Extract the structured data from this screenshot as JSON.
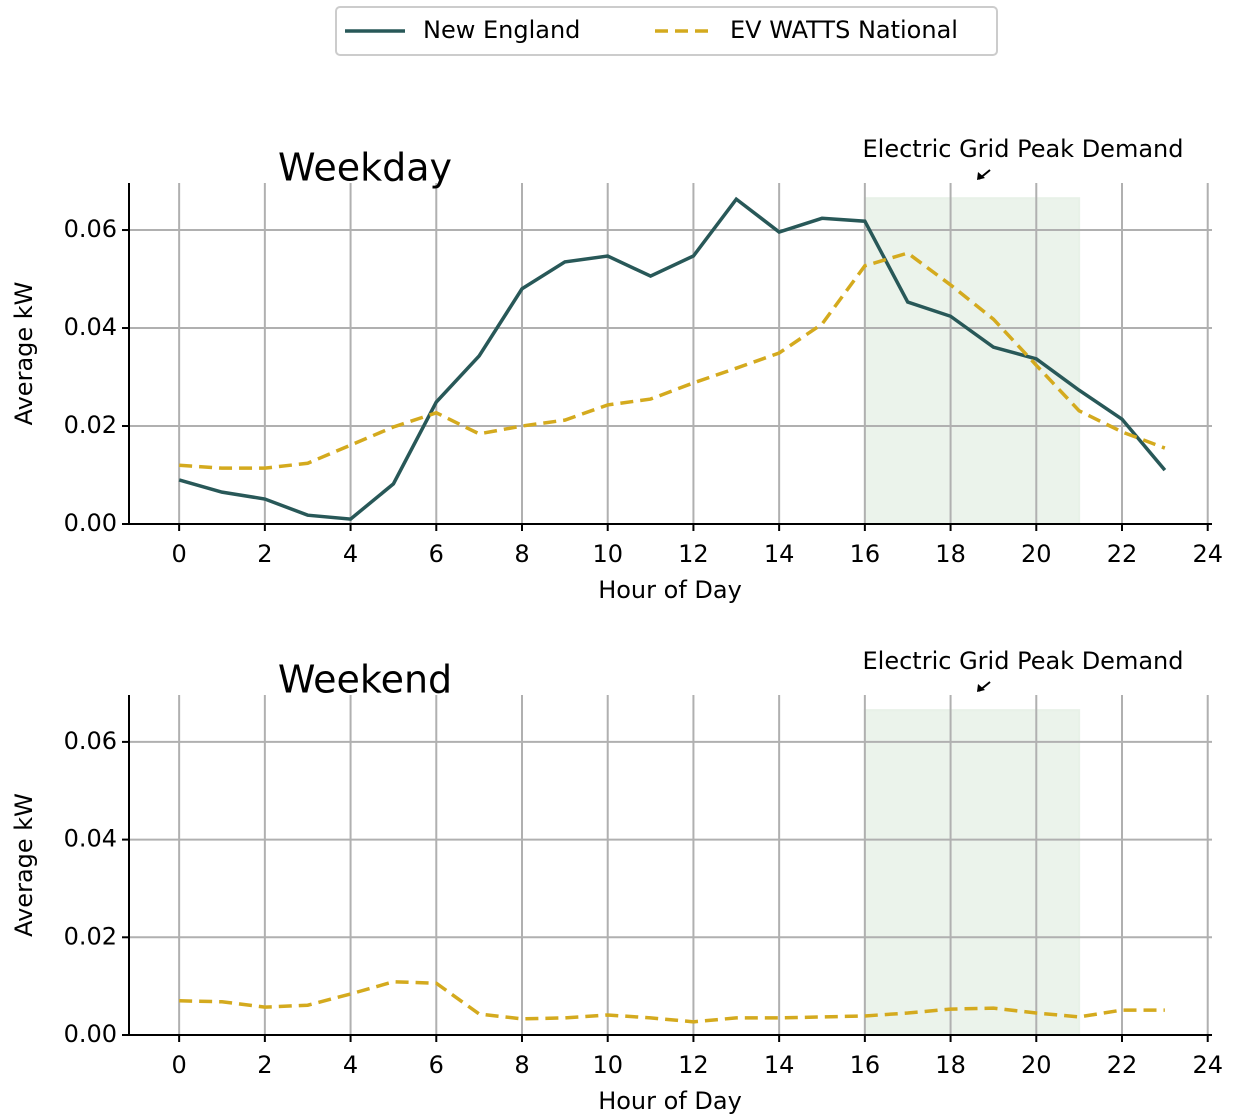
{
  "chart_data": [
    {
      "type": "line",
      "title": "Weekday",
      "xlabel": "Hour of Day",
      "ylabel": "Average kW",
      "annotation": "Electric Grid Peak Demand",
      "highlight": {
        "x": [
          16,
          21
        ],
        "ymax": 0.0665,
        "color": "#e8f1e8"
      },
      "legend": "top",
      "x": [
        0,
        1,
        2,
        3,
        4,
        5,
        6,
        7,
        8,
        9,
        10,
        11,
        12,
        13,
        14,
        15,
        16,
        17,
        18,
        19,
        20,
        21,
        22,
        23
      ],
      "series": [
        {
          "name": "New England",
          "color": "#285858",
          "linestyle": "solid",
          "values": [
            0.009,
            0.0065,
            0.0051,
            0.0018,
            0.001,
            0.0082,
            0.0249,
            0.0343,
            0.048,
            0.0535,
            0.0547,
            0.0506,
            0.0547,
            0.0663,
            0.0596,
            0.0624,
            0.0618,
            0.0453,
            0.0424,
            0.0361,
            0.0337,
            0.0273,
            0.0214,
            0.011
          ]
        },
        {
          "name": "EV WATTS National",
          "color": "#d4aa1e",
          "linestyle": "dashed",
          "values": [
            0.012,
            0.0114,
            0.0114,
            0.0124,
            0.0161,
            0.0198,
            0.0227,
            0.0184,
            0.02,
            0.0212,
            0.0243,
            0.0255,
            0.0288,
            0.0318,
            0.0349,
            0.0408,
            0.0527,
            0.0553,
            0.0488,
            0.0418,
            0.0324,
            0.0231,
            0.0188,
            0.0155
          ]
        }
      ],
      "xlim": [
        -1.17,
        24.1
      ],
      "xticks": [
        0,
        2,
        4,
        6,
        8,
        10,
        12,
        14,
        16,
        18,
        20,
        22,
        24
      ],
      "ylim": [
        0,
        0.0696
      ],
      "yticks": [
        {
          "value": 0,
          "label": "0.00"
        },
        0.02,
        0.04,
        0.06
      ],
      "grid": true
    },
    {
      "type": "line",
      "title": "Weekend",
      "xlabel": "Hour of Day",
      "ylabel": "Average kW",
      "annotation": "Electric Grid Peak Demand",
      "highlight": {
        "x": [
          16,
          21
        ],
        "ymax": 0.0665,
        "color": "#e8f1e8"
      },
      "x": [
        0,
        1,
        2,
        3,
        4,
        5,
        6,
        7,
        8,
        9,
        10,
        11,
        12,
        13,
        14,
        15,
        16,
        17,
        18,
        19,
        20,
        21,
        22,
        23
      ],
      "series": [
        {
          "name": "EV WATTS National",
          "color": "#d4aa1e",
          "linestyle": "dashed",
          "values": [
            0.007,
            0.0068,
            0.0057,
            0.0061,
            0.0084,
            0.0109,
            0.0106,
            0.0043,
            0.0033,
            0.0035,
            0.0041,
            0.0035,
            0.0027,
            0.0035,
            0.0035,
            0.0037,
            0.0039,
            0.0045,
            0.0053,
            0.0055,
            0.0045,
            0.0037,
            0.0051,
            0.0051
          ]
        }
      ],
      "xlim": [
        -1.17,
        24.1
      ],
      "xticks": [
        0,
        2,
        4,
        6,
        8,
        10,
        12,
        14,
        16,
        18,
        20,
        22,
        24
      ],
      "ylim": [
        0,
        0.0696
      ],
      "yticks": [
        {
          "value": 0,
          "label": "0.00"
        },
        0.02,
        0.04,
        0.06
      ],
      "grid": true
    }
  ]
}
